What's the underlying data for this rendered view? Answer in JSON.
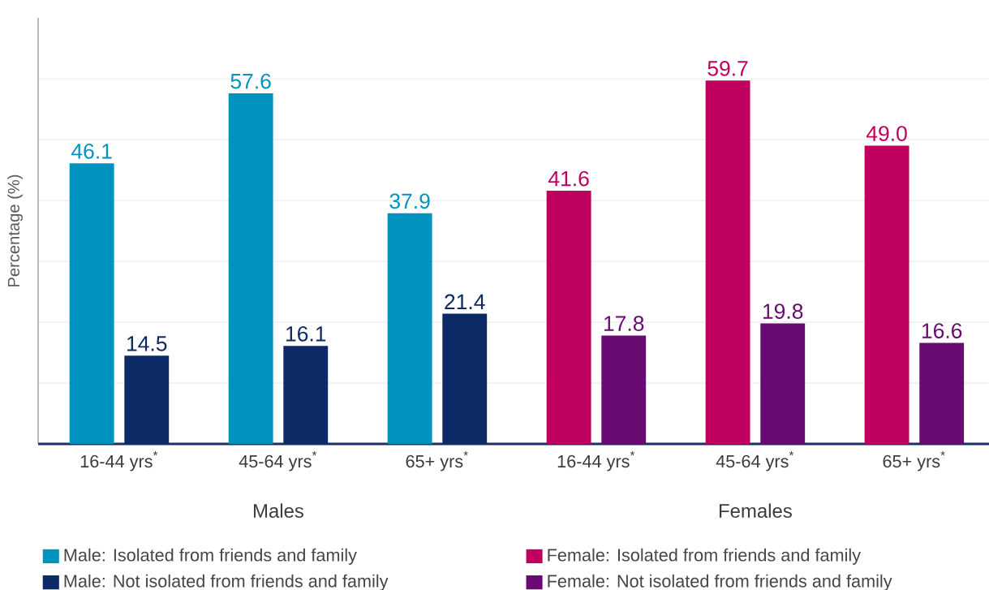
{
  "chart_data": {
    "type": "bar",
    "ylabel": "Percentage (%)",
    "categories": [
      "16-44 yrs$^{*}$",
      "45-64 yrs$^{*}$",
      "65+ yrs$^{*}$",
      "16-44 yrs$^{*}$",
      "45-64 yrs$^{*}$",
      "65+ yrs$^{*}$"
    ],
    "series": [
      {
        "name": "Male: Isolated from friends and family",
        "color": "#0093c0",
        "values": [
          46.1,
          57.6,
          37.9,
          null,
          null,
          null
        ],
        "value_labels": [
          "46.1",
          "57.6",
          "37.9",
          null,
          null,
          null
        ]
      },
      {
        "name": "Male: Not isolated from friends and family",
        "color": "#0c2a66",
        "values": [
          14.5,
          16.1,
          21.4,
          null,
          null,
          null
        ],
        "value_labels": [
          "14.5",
          "16.1",
          "21.4",
          null,
          null,
          null
        ]
      },
      {
        "name": "Female: Isolated from friends and family",
        "color": "#c0005f",
        "values": [
          null,
          null,
          null,
          41.6,
          59.7,
          49.0
        ],
        "value_labels": [
          null,
          null,
          null,
          "41.6",
          "59.7",
          "49.0"
        ]
      },
      {
        "name": "Female: Not isolated from friends and family",
        "color": "#6a0a73",
        "values": [
          null,
          null,
          null,
          17.8,
          19.8,
          16.6
        ],
        "value_labels": [
          null,
          null,
          null,
          "17.8",
          "19.8",
          "16.6"
        ]
      }
    ],
    "annotations": [
      "Males",
      "Females"
    ],
    "ylim": [
      0,
      70
    ],
    "yticks": [
      {
        "value": 0,
        "label": null
      },
      {
        "value": 10,
        "label": null
      },
      {
        "value": 20,
        "label": null
      },
      {
        "value": 30,
        "label": null
      },
      {
        "value": 40,
        "label": null
      },
      {
        "value": 50,
        "label": null
      },
      {
        "value": 60,
        "label": null
      }
    ],
    "grid": "y",
    "legend": "bottom"
  }
}
